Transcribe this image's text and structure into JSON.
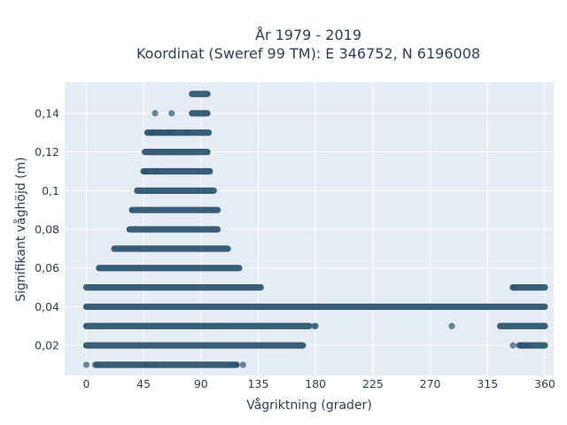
{
  "chart_data": {
    "type": "scatter",
    "title_line1": "År 1979 - 2019",
    "title_line2": "Koordinat (Sweref 99 TM): E 346752, N 6196008",
    "xlabel": "Vågriktning (grader)",
    "ylabel": "Signifikant våghöjd (m)",
    "xlim": [
      -17,
      367
    ],
    "ylim": [
      0.0045,
      0.156
    ],
    "x_ticks": [
      0,
      45,
      90,
      135,
      180,
      225,
      270,
      315,
      360
    ],
    "x_tick_labels": [
      "0",
      "45",
      "90",
      "135",
      "180",
      "225",
      "270",
      "315",
      "360"
    ],
    "y_ticks": [
      0.02,
      0.04,
      0.06,
      0.08,
      0.1,
      0.12,
      0.14
    ],
    "y_tick_labels": [
      "0,02",
      "0,04",
      "0,06",
      "0,08",
      "0,1",
      "0,12",
      "0,14"
    ],
    "grid": true,
    "marker_color": "#2e5571",
    "plot_background": "#e5ecf6",
    "rows": [
      {
        "y": 0.01,
        "segments": [
          [
            8,
            118
          ]
        ],
        "points": [
          0,
          7,
          10,
          47,
          54,
          113,
          117,
          123
        ]
      },
      {
        "y": 0.02,
        "segments": [
          [
            0,
            170
          ]
        ],
        "points": []
      },
      {
        "y": 0.03,
        "segments": [
          [
            0,
            175
          ],
          [
            325,
            360
          ]
        ],
        "points": [
          179,
          180,
          287
        ]
      },
      {
        "y": 0.04,
        "segments": [
          [
            0,
            360
          ]
        ],
        "points": []
      },
      {
        "y": 0.05,
        "segments": [
          [
            0,
            137
          ],
          [
            335,
            360
          ]
        ],
        "points": [
          336
        ]
      },
      {
        "y": 0.06,
        "segments": [
          [
            10,
            120
          ]
        ],
        "points": []
      },
      {
        "y": 0.07,
        "segments": [
          [
            22,
            111
          ]
        ],
        "points": []
      },
      {
        "y": 0.08,
        "segments": [
          [
            34,
            103
          ]
        ],
        "points": []
      },
      {
        "y": 0.09,
        "segments": [
          [
            36,
            103
          ]
        ],
        "points": []
      },
      {
        "y": 0.1,
        "segments": [
          [
            40,
            100
          ]
        ],
        "points": []
      },
      {
        "y": 0.11,
        "segments": [
          [
            45,
            97
          ]
        ],
        "points": [
          47,
          55
        ]
      },
      {
        "y": 0.12,
        "segments": [
          [
            46,
            95
          ]
        ],
        "points": [
          53
        ]
      },
      {
        "y": 0.13,
        "segments": [
          [
            48,
            96
          ]
        ],
        "points": [
          51,
          52,
          56,
          58,
          64,
          67,
          79
        ]
      },
      {
        "y": 0.14,
        "segments": [
          [
            83,
            95
          ]
        ],
        "points": [
          54,
          67
        ]
      },
      {
        "y": 0.15,
        "segments": [
          [
            83,
            95
          ]
        ],
        "points": []
      },
      {
        "y": 0.02,
        "segments": [
          [
            340,
            360
          ]
        ],
        "points": [
          335,
          342,
          346
        ]
      }
    ]
  }
}
